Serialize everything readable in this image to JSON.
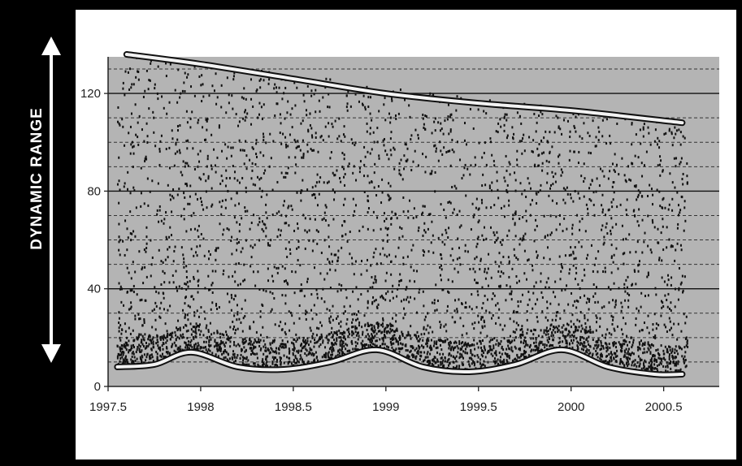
{
  "y_axis_title": "DYNAMIC RANGE",
  "chart_data": {
    "type": "scatter",
    "title": "",
    "xlabel": "",
    "ylabel": "DYNAMIC RANGE",
    "xlim": [
      1997.5,
      2000.8
    ],
    "ylim": [
      0,
      135
    ],
    "x_ticks": [
      1997.5,
      1998,
      1998.5,
      1999,
      1999.5,
      2000,
      2000.5
    ],
    "x_tick_labels": [
      "1997.5",
      "1998",
      "1998.5",
      "1999",
      "1999.5",
      "2000",
      "2000.5"
    ],
    "y_ticks": [
      0,
      40,
      80,
      120
    ],
    "y_tick_labels": [
      "0",
      "40",
      "80",
      "120"
    ],
    "grid": "horizontal",
    "plot_background": "#b4b4b4",
    "point_color": "#111111",
    "scatter": {
      "x_range": [
        1997.55,
        2000.63
      ],
      "approx_point_count": 4500,
      "note_visible": false
    },
    "envelope_upper": {
      "x": [
        1997.6,
        1998.0,
        1998.5,
        1999.0,
        1999.5,
        2000.0,
        2000.6
      ],
      "y": [
        136,
        132,
        126,
        120,
        116,
        113,
        108
      ]
    },
    "envelope_lower": {
      "x": [
        1997.55,
        1997.75,
        1997.95,
        1998.2,
        1998.45,
        1998.7,
        1998.95,
        1999.2,
        1999.45,
        1999.7,
        1999.95,
        2000.2,
        2000.45,
        2000.6
      ],
      "y": [
        8,
        9,
        14,
        8,
        7,
        10,
        15,
        8,
        6,
        9,
        15,
        8,
        5,
        5
      ]
    }
  }
}
